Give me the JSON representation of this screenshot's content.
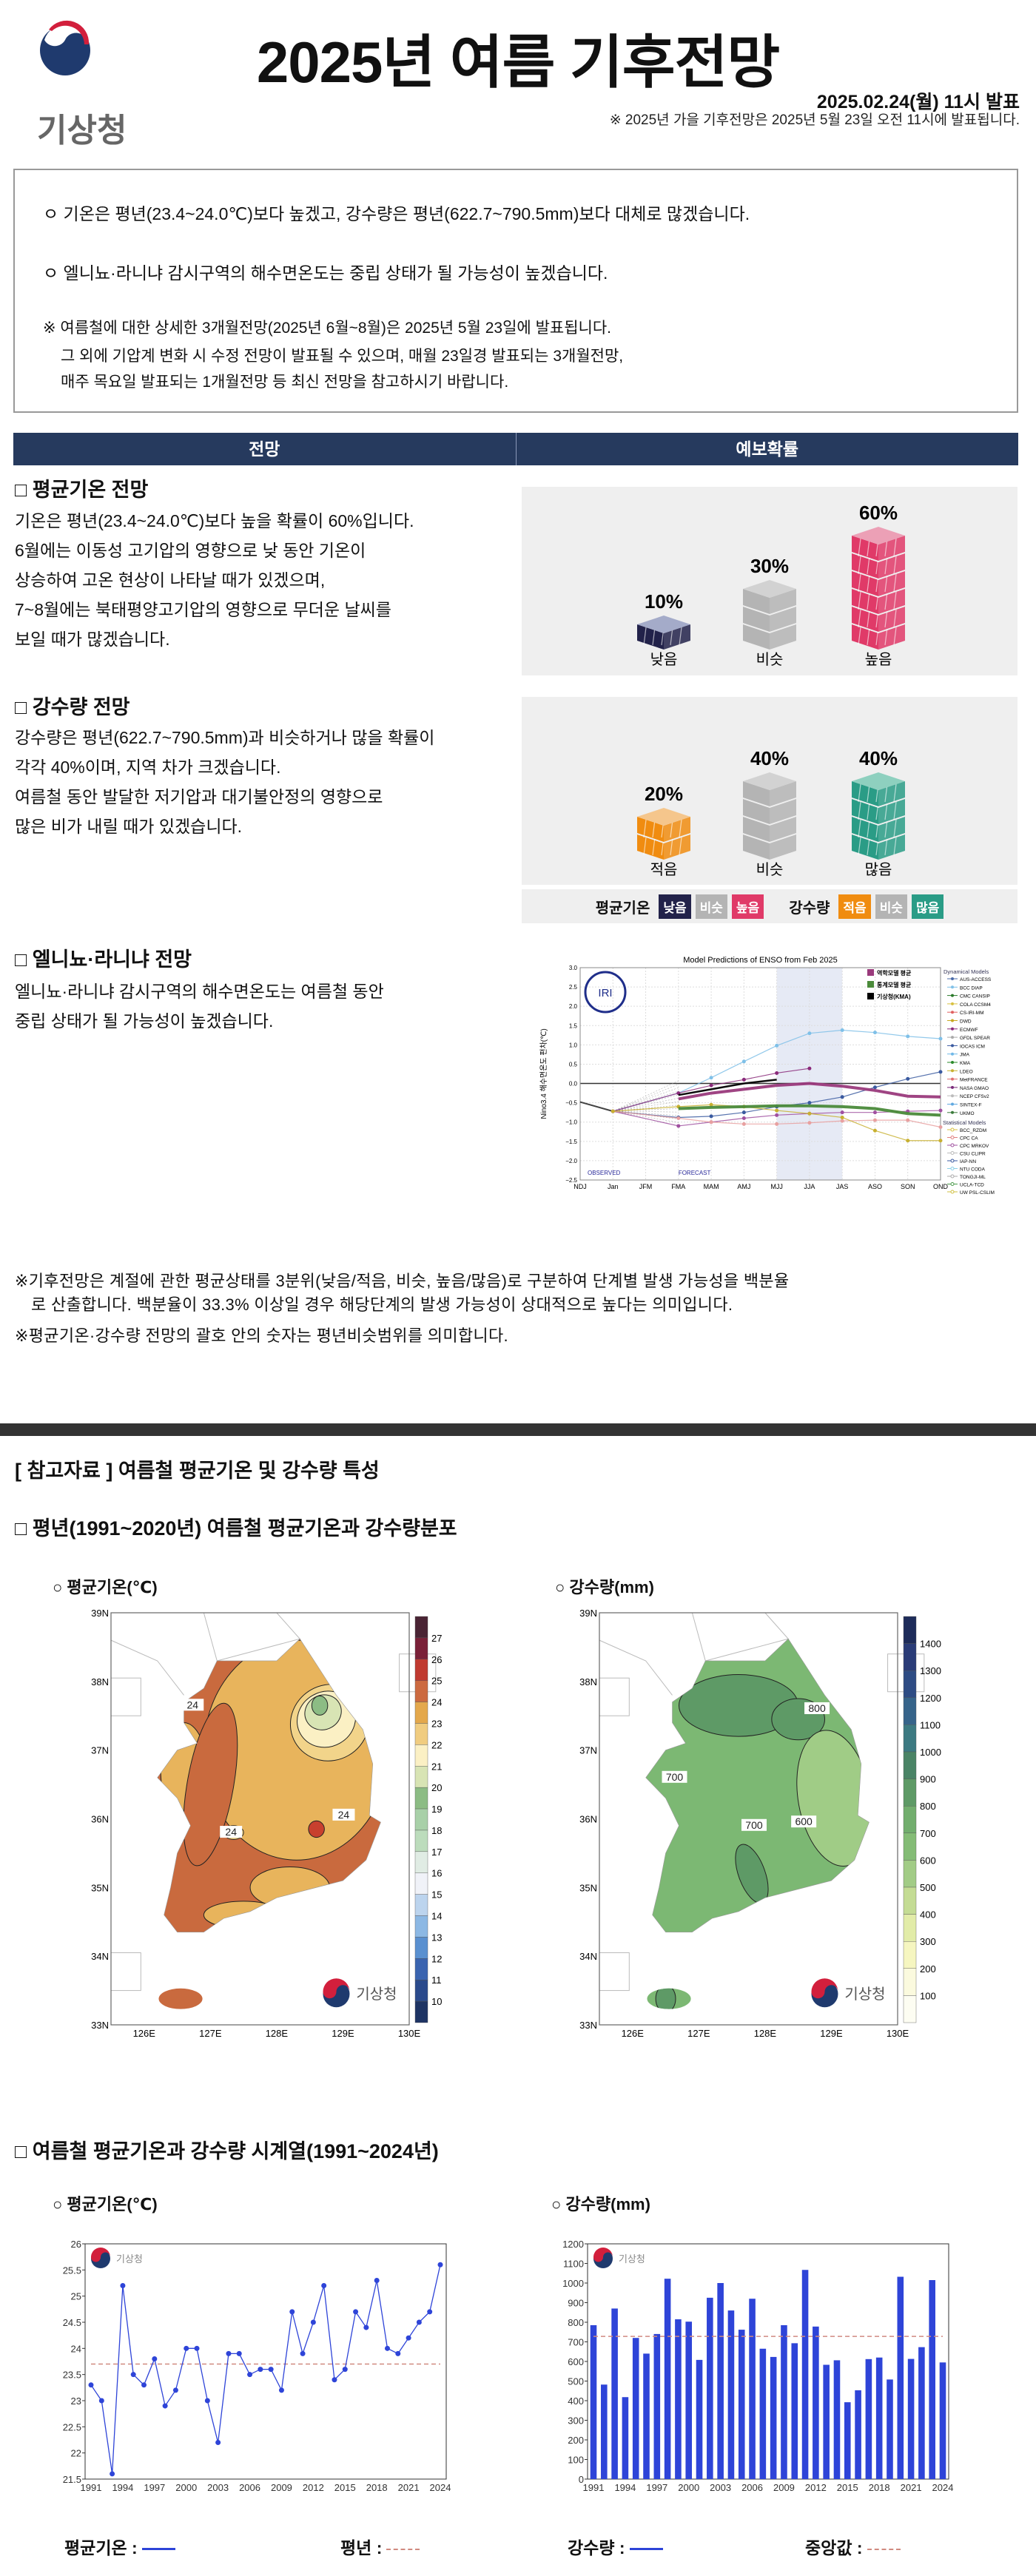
{
  "header": {
    "agency": "기상청",
    "title": "2025년 여름 기후전망",
    "issued": "2025.02.24(월) 11시 발표",
    "next_note": "※ 2025년 가을 기후전망은 2025년 5월 23일 오전 11시에 발표됩니다."
  },
  "summary": {
    "bullet1": "ㅇ 기온은 평년(23.4~24.0℃)보다 높겠고, 강수량은 평년(622.7~790.5mm)보다 대체로 많겠습니다.",
    "bullet2": "ㅇ 엘니뇨·라니냐 감시구역의 해수면온도는 중립 상태가 될 가능성이 높겠습니다.",
    "note1": "※ 여름철에 대한 상세한 3개월전망(2025년 6월~8월)은 2025년 5월 23일에 발표됩니다.",
    "note2": "그 외에 기압계 변화 시 수정 전망이 발표될 수 있으며, 매월 23일경 발표되는 3개월전망,",
    "note3": "매주 목요일 발표되는 1개월전망 등 최신 전망을 참고하시기 바랍니다."
  },
  "table_header": {
    "col1": "전망",
    "col2": "예보확률"
  },
  "temp_outlook": {
    "heading": "□ 평균기온 전망",
    "lines": [
      "기온은 평년(23.4~24.0℃)보다 높을 확률이 60%입니다.",
      "6월에는 이동성 고기압의 영향으로 낮 동안 기온이",
      "상승하여 고온 현상이 나타날 때가 있겠으며,",
      "7~8월에는 북태평양고기압의 영향으로 무더운 날씨를",
      "보일 때가 많겠습니다."
    ],
    "probs": [
      {
        "label": "낮음",
        "pct": 10,
        "pct_label": "10%",
        "side": "#22224a",
        "top": "#a4abc9",
        "hatch": true
      },
      {
        "label": "비슷",
        "pct": 30,
        "pct_label": "30%",
        "side": "#b4b4b4",
        "top": "#d2d2d2",
        "hatch": false
      },
      {
        "label": "높음",
        "pct": 60,
        "pct_label": "60%",
        "side": "#e03a68",
        "top": "#eca0b6",
        "hatch": true
      }
    ]
  },
  "precip_outlook": {
    "heading": "□ 강수량 전망",
    "lines": [
      "강수량은 평년(622.7~790.5mm)과 비슷하거나 많을 확률이",
      "각각 40%이며, 지역 차가 크겠습니다.",
      "여름철 동안 발달한 저기압과 대기불안정의 영향으로",
      "많은 비가 내릴 때가 있겠습니다."
    ],
    "probs": [
      {
        "label": "적음",
        "pct": 20,
        "pct_label": "20%",
        "side": "#f08c10",
        "top": "#f5c68c",
        "hatch": true
      },
      {
        "label": "비슷",
        "pct": 40,
        "pct_label": "40%",
        "side": "#b4b4b4",
        "top": "#d2d2d2",
        "hatch": false
      },
      {
        "label": "많음",
        "pct": 40,
        "pct_label": "40%",
        "side": "#2a9c86",
        "top": "#8ed0bf",
        "hatch": true
      }
    ]
  },
  "prob_legend": {
    "temp_label": "평균기온",
    "temp_items": [
      {
        "t": "낮음",
        "c": "#22224a"
      },
      {
        "t": "비슷",
        "c": "#b4b4b4"
      },
      {
        "t": "높음",
        "c": "#e03a68"
      }
    ],
    "precip_label": "강수량",
    "precip_items": [
      {
        "t": "적음",
        "c": "#f08c10"
      },
      {
        "t": "비슷",
        "c": "#b4b4b4"
      },
      {
        "t": "많음",
        "c": "#2a9c86"
      }
    ]
  },
  "enso": {
    "heading": "□ 엘니뇨·라니냐 전망",
    "lines": [
      "엘니뇨·라니냐 감시구역의 해수면온도는 여름철 동안",
      "중립 상태가 될 가능성이 높겠습니다."
    ]
  },
  "footnotes": {
    "f1a": "※기후전망은 계절에 관한 평균상태를 3분위(낮음/적음, 비슷, 높음/많음)로 구분하여 단계별 발생 가능성을 백분율",
    "f1b": "로 산출합니다. 백분율이 33.3% 이상일 경우 해당단계의 발생 가능성이 상대적으로 높다는 의미입니다.",
    "f2": "※평균기온·강수량 전망의 괄호 안의 숫자는 평년비슷범위를 의미합니다."
  },
  "reference": {
    "heading": "[ 참고자료 ] 여름철 평균기온 및 강수량 특성",
    "normals_heading": "□ 평년(1991~2020년) 여름철 평균기온과 강수량분포",
    "temp_map_title": "○ 평균기온(℃)",
    "precip_map_title": "○ 강수량(mm)",
    "lat_ticks": [
      "39N",
      "38N",
      "37N",
      "36N",
      "35N",
      "34N",
      "33N"
    ],
    "lon_ticks": [
      "126E",
      "127E",
      "128E",
      "129E",
      "130E"
    ],
    "temp_levels": [
      "27",
      "26",
      "25",
      "24",
      "23",
      "22",
      "21",
      "20",
      "19",
      "18",
      "17",
      "16",
      "15",
      "14",
      "13",
      "12",
      "11",
      "10"
    ],
    "precip_levels": [
      "1400",
      "1300",
      "1200",
      "1100",
      "1000",
      "900",
      "800",
      "700",
      "600",
      "500",
      "400",
      "300",
      "200",
      "100"
    ],
    "temp_contour_labels": [
      "24",
      "24",
      "24"
    ],
    "precip_contour_labels": [
      "800",
      "700",
      "700",
      "600"
    ],
    "watermark": "기상청",
    "series_heading": "□ 여름철 평균기온과 강수량 시계열(1991~2024년)",
    "temp_series_title": "○ 평균기온(℃)",
    "precip_series_title": "○ 강수량(mm)",
    "legend_temp": "평균기온 :",
    "legend_normal": "평년 :",
    "legend_precip": "강수량 :",
    "legend_median": "중앙값 :",
    "line_color": "#2e44d8",
    "dash_color": "#d08a80"
  },
  "chart_data": [
    {
      "type": "line",
      "title": "Model Predictions of ENSO from Feb 2025",
      "ylabel": "Nino3.4 해수면온도 편차(℃)",
      "categories": [
        "NDJ",
        "Jan",
        "JFM",
        "FMA",
        "MAM",
        "AMJ",
        "MJJ",
        "JJA",
        "JAS",
        "ASO",
        "SON",
        "OND"
      ],
      "yticks": [
        "3.0",
        "2.5",
        "2.0",
        "1.5",
        "1.0",
        "0.5",
        "0.0",
        "−0.5",
        "−1.0",
        "−1.5",
        "−2.0",
        "−2.5"
      ],
      "ylim": [
        -2.5,
        3.0
      ],
      "highlight": [
        "MJJ",
        "JAS"
      ],
      "annotations": {
        "observed": "OBSERVED",
        "forecast": "FORECAST",
        "logo": "IRI"
      },
      "legend_main": [
        {
          "name": "역학모델 평균",
          "color": "#9a3a7c"
        },
        {
          "name": "통계모델 평균",
          "color": "#4a8a3a"
        },
        {
          "name": "기상청(KMA)",
          "color": "#000000"
        }
      ],
      "dynamical_title": "Dynamical Models",
      "dynamical": [
        "AUS-ACCESS",
        "BCC DIAP",
        "CMC CANSIP",
        "COLA CCSM4",
        "CS-IRI-MM",
        "DWD",
        "ECMWF",
        "GFDL SPEAR",
        "IOCAS ICM",
        "JMA",
        "KMA",
        "LDEO",
        "MetFRANCE",
        "NASA GMAO",
        "NCEP CFSv2",
        "SINTEX-F",
        "UKMO"
      ],
      "dynamical_colors": [
        "#4a6aa8",
        "#7fc0e8",
        "#2a7a2a",
        "#d8c040",
        "#e06060",
        "#c8a820",
        "#8a2a7a",
        "#aaaaaa",
        "#3a5aa0",
        "#70b8e8",
        "#2a8a2a",
        "#c8b030",
        "#e07070",
        "#7a2a7a",
        "#bbbbbb",
        "#60a8e0",
        "#3a7a3a"
      ],
      "statistical_title": "Statistical Models",
      "statistical": [
        "BCC_RZDM",
        "CPC CA",
        "CPC MRKOV",
        "CSU CLIPR",
        "IAP-NN",
        "NTU CODA",
        "TONGJI-ML",
        "UCLA-TCD",
        "UW PSL-CSLIM",
        "UW PSL-LIM",
        "XRO"
      ],
      "statistical_colors": [
        "#d8c040",
        "#e08080",
        "#a050a0",
        "#bbbbbb",
        "#3a5aa0",
        "#8ad0e8",
        "#aaaaaa",
        "#4a9a4a",
        "#d0c040",
        "#e8a0a0",
        "#a04090"
      ],
      "series": [
        {
          "name": "OBSERVED",
          "color": "#222222",
          "width": 2,
          "values": [
            -0.48,
            -0.72,
            null,
            null,
            null,
            null,
            null,
            null,
            null,
            null,
            null,
            null
          ]
        },
        {
          "name": "BCC DIAP",
          "color": "#7fc0e8",
          "width": 1.2,
          "values": [
            null,
            -0.72,
            null,
            -0.25,
            0.15,
            0.57,
            0.98,
            1.3,
            1.38,
            1.32,
            1.22,
            1.16
          ]
        },
        {
          "name": "ECMWF",
          "color": "#8a2a7a",
          "width": 1.2,
          "values": [
            null,
            -0.72,
            null,
            -0.25,
            -0.05,
            0.1,
            0.27,
            0.39,
            null,
            null,
            null,
            null
          ]
        },
        {
          "name": "IOCAS ICM",
          "color": "#3a5aa0",
          "width": 1.2,
          "values": [
            null,
            -0.72,
            null,
            -0.88,
            -0.85,
            -0.75,
            -0.6,
            -0.5,
            -0.35,
            -0.1,
            0.12,
            0.3
          ]
        },
        {
          "name": "CPC MRKOV",
          "color": "#a050a0",
          "width": 1.2,
          "values": [
            null,
            -0.72,
            null,
            -1.1,
            -1.0,
            -0.9,
            -0.82,
            -0.78,
            -0.75,
            -0.75,
            -0.72,
            -0.7
          ]
        },
        {
          "name": "UW PSL-LIM",
          "color": "#e8a0a0",
          "width": 1.2,
          "values": [
            null,
            -0.72,
            null,
            -0.9,
            -1.0,
            -1.05,
            -1.05,
            -1.02,
            -0.97,
            -0.95,
            -0.95,
            -1.13
          ]
        },
        {
          "name": "LDEO",
          "color": "#c8b030",
          "width": 1.2,
          "values": [
            null,
            -0.72,
            null,
            -0.6,
            -0.55,
            -0.6,
            -0.7,
            -0.78,
            -0.88,
            -1.22,
            -1.48,
            -1.48
          ]
        },
        {
          "name": "역학모델 평균",
          "color": "#9a3a7c",
          "width": 4,
          "values": [
            null,
            null,
            null,
            -0.4,
            -0.25,
            -0.15,
            -0.05,
            0.0,
            -0.07,
            -0.18,
            -0.33,
            -0.35
          ]
        },
        {
          "name": "통계모델 평균",
          "color": "#4a8a3a",
          "width": 4,
          "values": [
            null,
            null,
            null,
            -0.65,
            -0.62,
            -0.6,
            -0.58,
            -0.58,
            -0.6,
            -0.65,
            -0.78,
            -0.82
          ]
        },
        {
          "name": "기상청(KMA)",
          "color": "#000000",
          "width": 2.5,
          "values": [
            null,
            null,
            null,
            -0.3,
            -0.15,
            0.0,
            0.1,
            null,
            null,
            null,
            null,
            null
          ]
        }
      ]
    },
    {
      "type": "line",
      "title": "평균기온(℃)",
      "x": [
        1991,
        1992,
        1993,
        1994,
        1995,
        1996,
        1997,
        1998,
        1999,
        2000,
        2001,
        2002,
        2003,
        2004,
        2005,
        2006,
        2007,
        2008,
        2009,
        2010,
        2011,
        2012,
        2013,
        2014,
        2015,
        2016,
        2017,
        2018,
        2019,
        2020,
        2021,
        2022,
        2023,
        2024
      ],
      "values": [
        23.3,
        23.0,
        21.6,
        25.2,
        23.5,
        23.3,
        23.8,
        22.9,
        23.2,
        24.0,
        24.0,
        23.0,
        22.2,
        23.9,
        23.9,
        23.5,
        23.6,
        23.6,
        23.2,
        24.7,
        23.9,
        24.5,
        25.2,
        23.4,
        23.6,
        24.7,
        24.4,
        25.3,
        24.0,
        23.9,
        24.2,
        24.5,
        24.7,
        25.6
      ],
      "normal": 23.7,
      "ylim": [
        21.5,
        26
      ],
      "yticks": [
        "21.5",
        "22",
        "22.5",
        "23",
        "23.5",
        "24",
        "24.5",
        "25",
        "25.5",
        "26"
      ],
      "xticks": [
        "1991",
        "1994",
        "1997",
        "2000",
        "2003",
        "2006",
        "2009",
        "2012",
        "2015",
        "2018",
        "2021",
        "2024"
      ]
    },
    {
      "type": "bar",
      "title": "강수량(mm)",
      "x": [
        1991,
        1992,
        1993,
        1994,
        1995,
        1996,
        1997,
        1998,
        1999,
        2000,
        2001,
        2002,
        2003,
        2004,
        2005,
        2006,
        2007,
        2008,
        2009,
        2010,
        2011,
        2012,
        2013,
        2014,
        2015,
        2016,
        2017,
        2018,
        2019,
        2020,
        2021,
        2022,
        2023,
        2024
      ],
      "values": [
        785,
        482,
        870,
        418,
        720,
        640,
        740,
        1022,
        815,
        803,
        608,
        925,
        1000,
        860,
        762,
        920,
        665,
        623,
        785,
        693,
        1067,
        778,
        583,
        606,
        392,
        453,
        612,
        620,
        508,
        1032,
        613,
        673,
        1015,
        595
      ],
      "median": 728,
      "ylim": [
        0,
        1200
      ],
      "yticks": [
        "0",
        "100",
        "200",
        "300",
        "400",
        "500",
        "600",
        "700",
        "800",
        "900",
        "1000",
        "1100",
        "1200"
      ],
      "xticks": [
        "1991",
        "1994",
        "1997",
        "2000",
        "2003",
        "2006",
        "2009",
        "2012",
        "2015",
        "2018",
        "2021",
        "2024"
      ]
    }
  ]
}
